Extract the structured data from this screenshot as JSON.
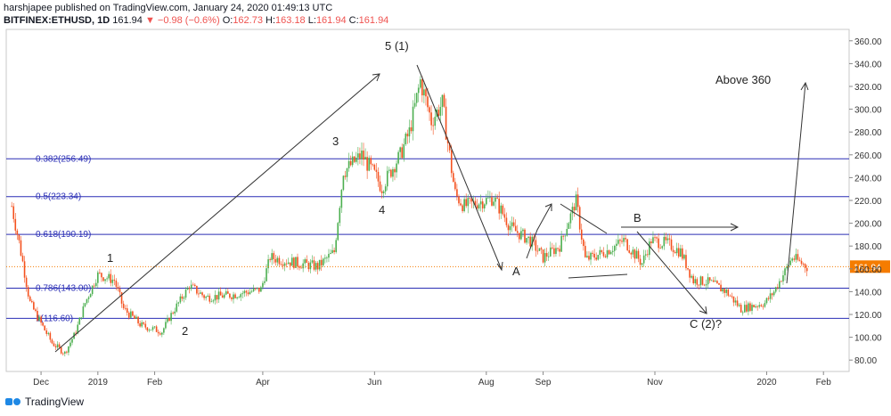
{
  "header": {
    "line1": "harshjapee published on TradingView.com, January 24, 2020 01:49:13 UTC",
    "symbol": "BITFINEX:ETHUSD, 1D",
    "last": "161.94",
    "change": "▼ −0.98 (−0.6%)",
    "o_label": "O:",
    "o": "162.73",
    "h_label": "H:",
    "h": "163.18",
    "l_label": "L:",
    "l": "161.94",
    "c_label": "C:",
    "c": "161.94"
  },
  "footer": {
    "brand": "TradingView"
  },
  "colors": {
    "up": "#26a69a",
    "down": "#ef5350",
    "fib": "#2a2eb5",
    "price_line": "#f57c00",
    "price_tag": "#f57c00",
    "up_vivid": "#4caf50",
    "down_vivid": "#f4511e"
  },
  "chart_data": {
    "type": "candlestick",
    "x": [
      "Dec",
      "2019",
      "Feb",
      "Apr",
      "Jun",
      "Aug",
      "Sep",
      "Nov",
      "2020",
      "Feb"
    ],
    "y_ticks": [
      80,
      100,
      120,
      140,
      160,
      180,
      200,
      220,
      240,
      260,
      280,
      300,
      320,
      340,
      360
    ],
    "ylim": [
      70,
      370
    ],
    "current_price": "161.94",
    "fib_levels": [
      {
        "label": "0.382(256.49)",
        "value": 256.49
      },
      {
        "label": "0.5(223.34)",
        "value": 223.34
      },
      {
        "label": "0.618(190.19)",
        "value": 190.19
      },
      {
        "label": "0.786(143.00)",
        "value": 143.0
      },
      {
        "label": "1(116.60)",
        "value": 116.6
      }
    ],
    "annotations": [
      "5 (1)",
      "3",
      "4",
      "1",
      "2",
      "A",
      "B",
      "C (2)?",
      "Above 360"
    ],
    "close_path": [
      [
        "2018-11-15",
        215
      ],
      [
        "2018-11-20",
        175
      ],
      [
        "2018-11-25",
        130
      ],
      [
        "2018-12-01",
        112
      ],
      [
        "2018-12-07",
        95
      ],
      [
        "2018-12-14",
        86
      ],
      [
        "2018-12-20",
        105
      ],
      [
        "2018-12-25",
        130
      ],
      [
        "2019-01-01",
        155
      ],
      [
        "2019-01-10",
        150
      ],
      [
        "2019-01-15",
        125
      ],
      [
        "2019-01-25",
        110
      ],
      [
        "2019-02-05",
        105
      ],
      [
        "2019-02-10",
        120
      ],
      [
        "2019-02-20",
        145
      ],
      [
        "2019-03-01",
        135
      ],
      [
        "2019-03-15",
        137
      ],
      [
        "2019-03-31",
        142
      ],
      [
        "2019-04-05",
        170
      ],
      [
        "2019-04-20",
        165
      ],
      [
        "2019-05-01",
        162
      ],
      [
        "2019-05-10",
        175
      ],
      [
        "2019-05-15",
        245
      ],
      [
        "2019-05-25",
        260
      ],
      [
        "2019-06-05",
        232
      ],
      [
        "2019-06-15",
        260
      ],
      [
        "2019-06-20",
        280
      ],
      [
        "2019-06-26",
        325
      ],
      [
        "2019-07-02",
        290
      ],
      [
        "2019-07-08",
        305
      ],
      [
        "2019-07-15",
        225
      ],
      [
        "2019-07-20",
        215
      ],
      [
        "2019-08-05",
        222
      ],
      [
        "2019-08-15",
        195
      ],
      [
        "2019-08-25",
        185
      ],
      [
        "2019-09-01",
        170
      ],
      [
        "2019-09-10",
        180
      ],
      [
        "2019-09-19",
        220
      ],
      [
        "2019-09-24",
        168
      ],
      [
        "2019-10-05",
        175
      ],
      [
        "2019-10-15",
        185
      ],
      [
        "2019-10-25",
        165
      ],
      [
        "2019-10-30",
        185
      ],
      [
        "2019-11-08",
        182
      ],
      [
        "2019-11-15",
        175
      ],
      [
        "2019-11-22",
        150
      ],
      [
        "2019-12-01",
        148
      ],
      [
        "2019-12-10",
        140
      ],
      [
        "2019-12-18",
        125
      ],
      [
        "2019-12-31",
        130
      ],
      [
        "2020-01-05",
        140
      ],
      [
        "2020-01-15",
        170
      ],
      [
        "2020-01-23",
        161.94
      ]
    ]
  }
}
